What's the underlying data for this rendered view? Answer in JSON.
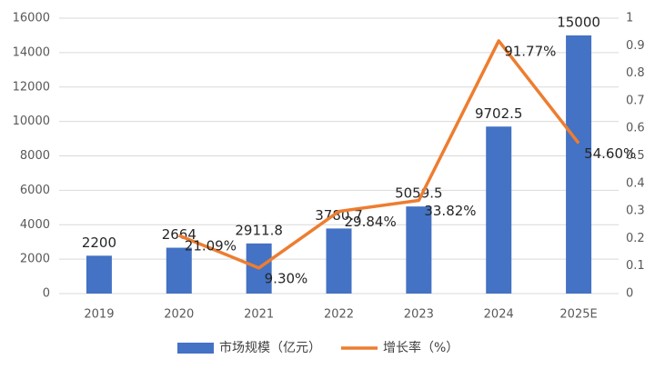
{
  "chart_data": {
    "type": "bar-line",
    "categories": [
      "2019",
      "2020",
      "2021",
      "2022",
      "2023",
      "2024",
      "2025E"
    ],
    "series": [
      {
        "name": "市场规模（亿元）",
        "type": "bar",
        "color": "#4472c4",
        "values": [
          2200,
          2664,
          2911.8,
          3780.7,
          5059.5,
          9702.5,
          15000
        ]
      },
      {
        "name": "增长率（%）",
        "type": "line",
        "axis": "y2",
        "color": "#ed7d31",
        "values": [
          null,
          0.2109,
          0.093,
          0.2984,
          0.3382,
          0.9177,
          0.546
        ],
        "value_labels": [
          null,
          "21.09%",
          "9.30%",
          "29.84%",
          "33.82%",
          "91.77%",
          "54.60%"
        ]
      }
    ],
    "ylim": [
      0,
      16000
    ],
    "yticks": [
      0,
      2000,
      4000,
      6000,
      8000,
      10000,
      12000,
      14000,
      16000
    ],
    "y2lim": [
      0,
      1
    ],
    "y2ticks": [
      0,
      0.1,
      0.2,
      0.3,
      0.4,
      0.5,
      0.6,
      0.7,
      0.8,
      0.9,
      1
    ],
    "grid": true,
    "legend": "bottom"
  }
}
